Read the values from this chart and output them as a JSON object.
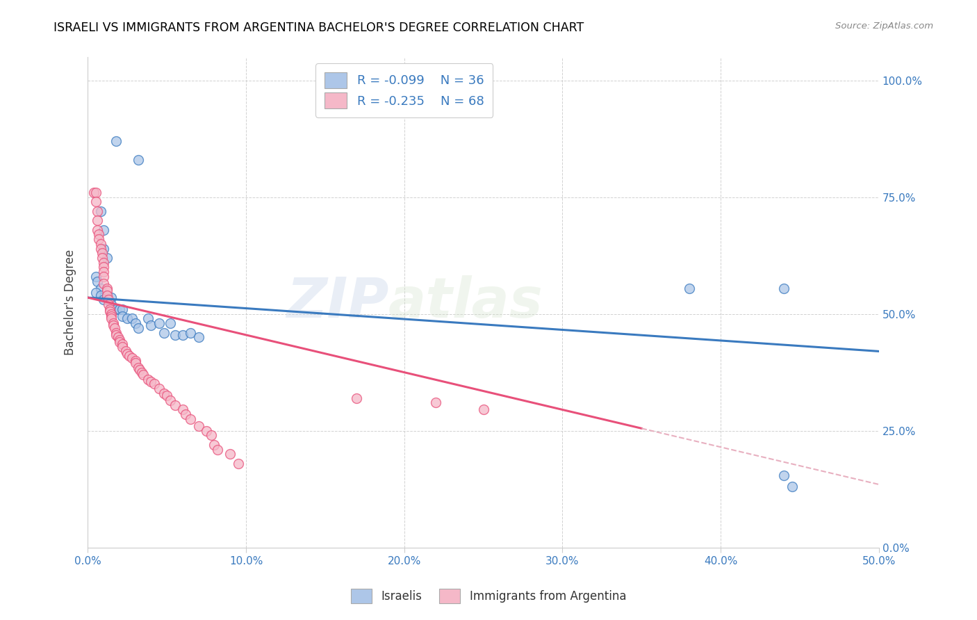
{
  "title": "ISRAELI VS IMMIGRANTS FROM ARGENTINA BACHELOR'S DEGREE CORRELATION CHART",
  "source": "Source: ZipAtlas.com",
  "ylabel": "Bachelor's Degree",
  "legend_label1": "Israelis",
  "legend_label2": "Immigrants from Argentina",
  "r1": -0.099,
  "n1": 36,
  "r2": -0.235,
  "n2": 68,
  "color_blue": "#adc6e8",
  "color_pink": "#f5b8c8",
  "line_color_blue": "#3a7abf",
  "line_color_pink": "#e8507a",
  "line_color_dashed": "#e8b0c0",
  "watermark": "ZIPatlas",
  "xlim": [
    0.0,
    0.5
  ],
  "ylim": [
    0.0,
    1.05
  ],
  "israelis_x": [
    0.018,
    0.032,
    0.008,
    0.01,
    0.01,
    0.012,
    0.005,
    0.006,
    0.008,
    0.005,
    0.008,
    0.01,
    0.012,
    0.015,
    0.015,
    0.018,
    0.02,
    0.022,
    0.022,
    0.025,
    0.028,
    0.03,
    0.032,
    0.038,
    0.04,
    0.045,
    0.048,
    0.052,
    0.055,
    0.06,
    0.065,
    0.07,
    0.38,
    0.44,
    0.445,
    0.44
  ],
  "israelis_y": [
    0.87,
    0.83,
    0.72,
    0.68,
    0.64,
    0.62,
    0.58,
    0.57,
    0.555,
    0.545,
    0.54,
    0.53,
    0.54,
    0.535,
    0.52,
    0.51,
    0.51,
    0.51,
    0.495,
    0.49,
    0.49,
    0.48,
    0.47,
    0.49,
    0.475,
    0.48,
    0.46,
    0.48,
    0.455,
    0.455,
    0.46,
    0.45,
    0.555,
    0.555,
    0.13,
    0.155
  ],
  "argentina_x": [
    0.004,
    0.005,
    0.005,
    0.006,
    0.006,
    0.006,
    0.007,
    0.007,
    0.008,
    0.008,
    0.009,
    0.009,
    0.01,
    0.01,
    0.01,
    0.01,
    0.01,
    0.012,
    0.012,
    0.012,
    0.013,
    0.013,
    0.014,
    0.014,
    0.015,
    0.015,
    0.015,
    0.016,
    0.016,
    0.017,
    0.018,
    0.018,
    0.019,
    0.02,
    0.02,
    0.022,
    0.022,
    0.024,
    0.025,
    0.026,
    0.028,
    0.03,
    0.03,
    0.032,
    0.033,
    0.034,
    0.035,
    0.038,
    0.04,
    0.042,
    0.045,
    0.048,
    0.05,
    0.052,
    0.055,
    0.06,
    0.062,
    0.065,
    0.07,
    0.075,
    0.078,
    0.08,
    0.082,
    0.09,
    0.095,
    0.17,
    0.22,
    0.25
  ],
  "argentina_y": [
    0.76,
    0.76,
    0.74,
    0.72,
    0.7,
    0.68,
    0.67,
    0.66,
    0.65,
    0.64,
    0.63,
    0.62,
    0.61,
    0.6,
    0.59,
    0.58,
    0.565,
    0.555,
    0.55,
    0.54,
    0.53,
    0.52,
    0.51,
    0.505,
    0.5,
    0.495,
    0.49,
    0.48,
    0.475,
    0.47,
    0.46,
    0.455,
    0.45,
    0.445,
    0.44,
    0.435,
    0.43,
    0.42,
    0.415,
    0.41,
    0.405,
    0.4,
    0.395,
    0.385,
    0.38,
    0.375,
    0.37,
    0.36,
    0.355,
    0.35,
    0.34,
    0.33,
    0.325,
    0.315,
    0.305,
    0.295,
    0.285,
    0.275,
    0.26,
    0.25,
    0.24,
    0.22,
    0.21,
    0.2,
    0.18,
    0.32,
    0.31,
    0.295
  ]
}
